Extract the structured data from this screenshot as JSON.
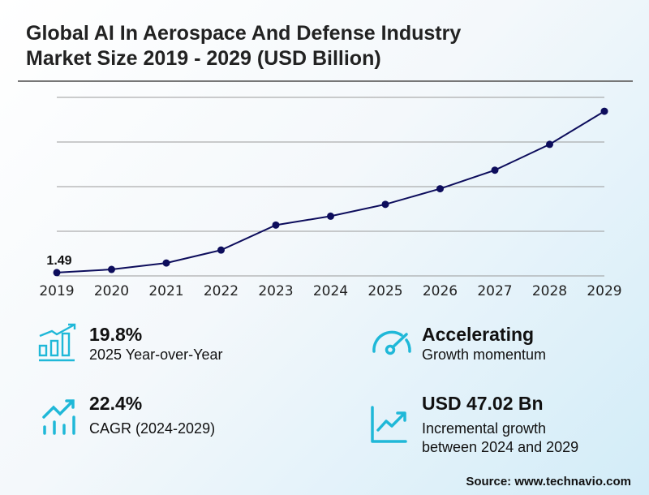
{
  "title_line1": "Global AI In Aerospace And Defense Industry",
  "title_line2": "Market Size 2019 - 2029 (USD Billion)",
  "chart_data": {
    "type": "line",
    "title": "Global AI In Aerospace And Defense Industry Market Size 2019 - 2029 (USD Billion)",
    "categories": [
      "2019",
      "2020",
      "2021",
      "2022",
      "2023",
      "2024",
      "2025",
      "2026",
      "2027",
      "2028",
      "2029"
    ],
    "values": [
      1.49,
      2.89,
      5.79,
      11.57,
      22.78,
      26.76,
      32.06,
      39.06,
      47.38,
      58.95,
      73.78
    ],
    "data_labels": {
      "2019": "1.49"
    },
    "ylim": [
      0,
      80
    ],
    "y_gridlines": [
      0,
      20,
      40,
      60,
      80
    ],
    "y_tick_labels_shown": false,
    "grid": true,
    "line_color": "#0d0d5c",
    "xlabel": "",
    "ylabel": ""
  },
  "stats": [
    {
      "value": "19.8%",
      "label": "2025 Year-over-Year",
      "icon": "bar-chart-growth-icon"
    },
    {
      "value": "Accelerating",
      "label": "Growth momentum",
      "icon": "speedometer-icon"
    },
    {
      "value": "22.4%",
      "label": "CAGR (2024-2029)",
      "icon": "trend-arrow-bars-icon"
    },
    {
      "value": "USD 47.02 Bn",
      "label_line1": "Incremental growth",
      "label_line2": "between 2024 and 2029",
      "icon": "line-chart-icon"
    }
  ],
  "icon_color": "#1fb8d8",
  "source": "Source: www.technavio.com"
}
